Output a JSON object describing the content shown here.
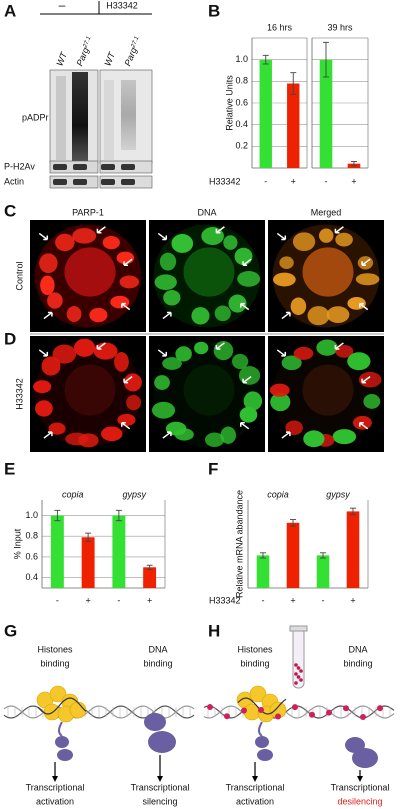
{
  "panel_labels": [
    "A",
    "B",
    "C",
    "D",
    "E",
    "F",
    "G",
    "H"
  ],
  "blot": {
    "header_minus": "–",
    "header_treat": "H33342",
    "lanes": [
      {
        "text": "WT"
      },
      {
        "text": "Parg",
        "sup": "27.1"
      },
      {
        "text": "WT"
      },
      {
        "text": "Parg",
        "sup": "27.1"
      }
    ],
    "bands": [
      "pADPr",
      "P-H2Av",
      "Actin"
    ]
  },
  "microscopy": {
    "columns": [
      "PARP-1",
      "DNA",
      "Merged"
    ],
    "rows": [
      "Control",
      "H33342"
    ]
  },
  "chart_data": [
    {
      "type": "bar",
      "title": "16 hrs",
      "ylabel": "Relative Units",
      "xlabel": "H33342",
      "categories": [
        "-",
        "+"
      ],
      "values": [
        1.0,
        0.78
      ],
      "errors": [
        0.04,
        0.1
      ],
      "colors": [
        "#33e033",
        "#ee2200"
      ],
      "ylim": [
        0,
        1.2
      ],
      "yticks": [
        0.2,
        0.4,
        0.6,
        0.8,
        {
          "value": 1,
          "label": "1.0"
        }
      ],
      "grid": true
    },
    {
      "type": "bar",
      "title": "39 hrs",
      "categories": [
        "-",
        "+"
      ],
      "values": [
        1.0,
        0.04
      ],
      "errors": [
        0.16,
        0.02
      ],
      "colors": [
        "#33e033",
        "#ee2200"
      ],
      "ylim": [
        0,
        1.2
      ],
      "yticks": [
        0.2,
        0.4,
        0.6,
        0.8,
        1
      ],
      "grid": true
    },
    {
      "type": "bar",
      "ylabel": "% Input",
      "groups": [
        "copia",
        "gypsy"
      ],
      "categories": [
        "-",
        "+",
        "-",
        "+"
      ],
      "values": [
        1.0,
        0.79,
        1.0,
        0.5
      ],
      "errors": [
        0.05,
        0.04,
        0.05,
        0.02
      ],
      "colors": [
        "#33e033",
        "#ee2200",
        "#33e033",
        "#ee2200"
      ],
      "ylim": [
        0.3,
        1.15
      ],
      "yticks": [
        0.4,
        0.6,
        0.8,
        {
          "value": 1,
          "label": "1.0"
        }
      ],
      "grid": true
    },
    {
      "type": "bar",
      "ylabel": "Relative mRNA abandance",
      "xlabel": "H33342",
      "groups": [
        "copia",
        "gypsy"
      ],
      "categories": [
        "-",
        "+",
        "-",
        "+"
      ],
      "values": [
        1.0,
        2.0,
        1.0,
        2.35
      ],
      "errors": [
        0.08,
        0.1,
        0.08,
        0.1
      ],
      "colors": [
        "#33e033",
        "#ee2200",
        "#33e033",
        "#ee2200"
      ],
      "ylim": [
        0,
        2.7
      ],
      "grid": false
    }
  ],
  "diagram_g": {
    "left_title": [
      "Histones",
      "binding"
    ],
    "right_title": [
      "DNA",
      "binding"
    ],
    "left_outcome": [
      "Transcriptional",
      "activation"
    ],
    "right_outcome": [
      "Transcriptional",
      "silencing"
    ]
  },
  "diagram_h": {
    "left_title": [
      "Histones",
      "binding"
    ],
    "right_title": [
      "DNA",
      "binding"
    ],
    "left_outcome": [
      "Transcriptional",
      "activation"
    ],
    "right_outcome": [
      "Transcriptional",
      "desilencing"
    ]
  }
}
